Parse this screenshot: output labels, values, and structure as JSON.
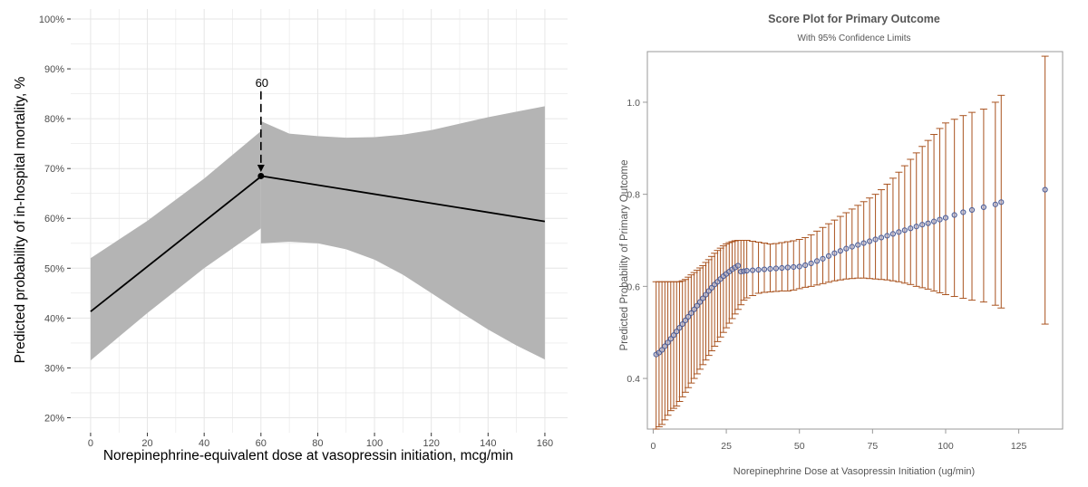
{
  "chart_data": [
    {
      "type": "line",
      "title": "",
      "xlabel": "Norepinephrine-equivalent dose at vasopressin initiation, mcg/min",
      "ylabel": "Predicted probability of in-hospital mortality, %",
      "xlim": [
        -7,
        168
      ],
      "ylim": [
        17,
        102
      ],
      "xticks": [
        0,
        20,
        40,
        60,
        80,
        100,
        120,
        140,
        160
      ],
      "yticks": [
        20,
        30,
        40,
        50,
        60,
        70,
        80,
        90,
        100
      ],
      "ytick_labels": [
        "20%",
        "30%",
        "40%",
        "50%",
        "60%",
        "70%",
        "80%",
        "90%",
        "100%"
      ],
      "grid": true,
      "colors": {
        "line": "#000000",
        "band": "#b4b4b4",
        "panel": "#ffffff",
        "grid": "#e6e6e6"
      },
      "series": [
        {
          "x": [
            0,
            60
          ],
          "y": [
            41.3,
            68.4
          ],
          "lower": [
            31.5,
            58.0
          ],
          "upper": [
            52.0,
            77.5
          ],
          "band_x": [
            0,
            20,
            40,
            60
          ],
          "band_lower": [
            31.5,
            41.0,
            50.0,
            58.0
          ],
          "band_upper": [
            52.0,
            59.5,
            68.0,
            77.5
          ]
        },
        {
          "x": [
            60,
            160
          ],
          "y": [
            68.5,
            59.4
          ],
          "band_x": [
            60,
            70,
            80,
            90,
            100,
            110,
            120,
            130,
            140,
            150,
            160
          ],
          "band_lower": [
            55.0,
            55.3,
            55.0,
            53.8,
            51.7,
            48.7,
            45.0,
            41.3,
            37.7,
            34.5,
            31.7
          ],
          "band_upper": [
            79.5,
            77.0,
            76.5,
            76.2,
            76.3,
            76.8,
            77.7,
            79.0,
            80.3,
            81.4,
            82.5
          ]
        }
      ],
      "annotation": {
        "text": "60",
        "x": 60,
        "y_from": 85.5,
        "y_to": 69.3
      }
    },
    {
      "type": "scatter",
      "title": "Score Plot for Primary Outcome",
      "subtitle": "With 95% Confidence Limits",
      "xlabel": "Norepinephrine Dose at Vasopressin Initiation (ug/min)",
      "ylabel": "Predicted Probability of Primary Outcome",
      "xlim": [
        -2,
        140
      ],
      "ylim": [
        0.29,
        1.11
      ],
      "xticks": [
        0,
        25,
        50,
        75,
        100,
        125
      ],
      "yticks": [
        0.4,
        0.6,
        0.8,
        1.0
      ],
      "ytick_labels": [
        "0.4",
        "0.6",
        "0.8",
        "1.0"
      ],
      "grid": false,
      "colors": {
        "marker": "#4a5b94",
        "error_bar": "#a9531f",
        "frame": "#999999"
      },
      "points": [
        [
          1,
          0.452,
          0.61,
          0.29
        ],
        [
          2,
          0.456,
          0.61,
          0.295
        ],
        [
          3,
          0.462,
          0.61,
          0.3
        ],
        [
          4,
          0.47,
          0.61,
          0.31
        ],
        [
          5,
          0.478,
          0.61,
          0.32
        ],
        [
          6,
          0.486,
          0.61,
          0.33
        ],
        [
          7,
          0.494,
          0.61,
          0.335
        ],
        [
          8,
          0.502,
          0.61,
          0.34
        ],
        [
          9,
          0.51,
          0.61,
          0.35
        ],
        [
          10,
          0.518,
          0.612,
          0.36
        ],
        [
          11,
          0.526,
          0.615,
          0.37
        ],
        [
          12,
          0.534,
          0.62,
          0.38
        ],
        [
          13,
          0.542,
          0.625,
          0.39
        ],
        [
          14,
          0.55,
          0.63,
          0.4
        ],
        [
          15,
          0.558,
          0.635,
          0.41
        ],
        [
          16,
          0.566,
          0.64,
          0.42
        ],
        [
          17,
          0.574,
          0.645,
          0.43
        ],
        [
          18,
          0.582,
          0.652,
          0.44
        ],
        [
          19,
          0.59,
          0.658,
          0.45
        ],
        [
          20,
          0.597,
          0.665,
          0.46
        ],
        [
          21,
          0.604,
          0.672,
          0.47
        ],
        [
          22,
          0.61,
          0.678,
          0.48
        ],
        [
          23,
          0.616,
          0.683,
          0.49
        ],
        [
          24,
          0.622,
          0.688,
          0.5
        ],
        [
          25,
          0.627,
          0.692,
          0.51
        ],
        [
          26,
          0.632,
          0.695,
          0.52
        ],
        [
          27,
          0.637,
          0.697,
          0.53
        ],
        [
          28,
          0.641,
          0.699,
          0.54
        ],
        [
          29,
          0.645,
          0.7,
          0.55
        ],
        [
          30,
          0.632,
          0.7,
          0.56
        ],
        [
          31,
          0.633,
          0.7,
          0.57
        ],
        [
          32,
          0.634,
          0.7,
          0.575
        ],
        [
          34,
          0.635,
          0.698,
          0.58
        ],
        [
          36,
          0.636,
          0.696,
          0.585
        ],
        [
          38,
          0.637,
          0.694,
          0.587
        ],
        [
          40,
          0.638,
          0.692,
          0.588
        ],
        [
          42,
          0.639,
          0.693,
          0.589
        ],
        [
          44,
          0.64,
          0.695,
          0.59
        ],
        [
          46,
          0.641,
          0.697,
          0.59
        ],
        [
          48,
          0.642,
          0.699,
          0.592
        ],
        [
          50,
          0.643,
          0.702,
          0.595
        ],
        [
          52,
          0.646,
          0.706,
          0.598
        ],
        [
          54,
          0.65,
          0.712,
          0.6
        ],
        [
          56,
          0.655,
          0.72,
          0.603
        ],
        [
          58,
          0.66,
          0.728,
          0.606
        ],
        [
          60,
          0.666,
          0.736,
          0.609
        ],
        [
          62,
          0.672,
          0.744,
          0.612
        ],
        [
          64,
          0.677,
          0.752,
          0.614
        ],
        [
          66,
          0.682,
          0.76,
          0.616
        ],
        [
          68,
          0.686,
          0.768,
          0.617
        ],
        [
          70,
          0.69,
          0.776,
          0.618
        ],
        [
          72,
          0.694,
          0.784,
          0.618
        ],
        [
          74,
          0.698,
          0.792,
          0.617
        ],
        [
          76,
          0.702,
          0.8,
          0.616
        ],
        [
          78,
          0.706,
          0.81,
          0.615
        ],
        [
          80,
          0.71,
          0.822,
          0.614
        ],
        [
          82,
          0.714,
          0.835,
          0.612
        ],
        [
          84,
          0.718,
          0.848,
          0.61
        ],
        [
          86,
          0.722,
          0.862,
          0.607
        ],
        [
          88,
          0.726,
          0.876,
          0.604
        ],
        [
          90,
          0.73,
          0.89,
          0.6
        ],
        [
          92,
          0.734,
          0.904,
          0.597
        ],
        [
          94,
          0.737,
          0.917,
          0.594
        ],
        [
          96,
          0.741,
          0.93,
          0.59
        ],
        [
          98,
          0.745,
          0.943,
          0.586
        ],
        [
          100,
          0.749,
          0.955,
          0.582
        ],
        [
          103,
          0.755,
          0.963,
          0.578
        ],
        [
          106,
          0.761,
          0.971,
          0.574
        ],
        [
          109,
          0.766,
          0.978,
          0.57
        ],
        [
          113,
          0.772,
          0.985,
          0.566
        ],
        [
          117,
          0.778,
          1.0,
          0.559
        ],
        [
          119,
          0.783,
          1.015,
          0.553
        ],
        [
          134,
          0.81,
          1.1,
          0.518
        ]
      ]
    }
  ]
}
